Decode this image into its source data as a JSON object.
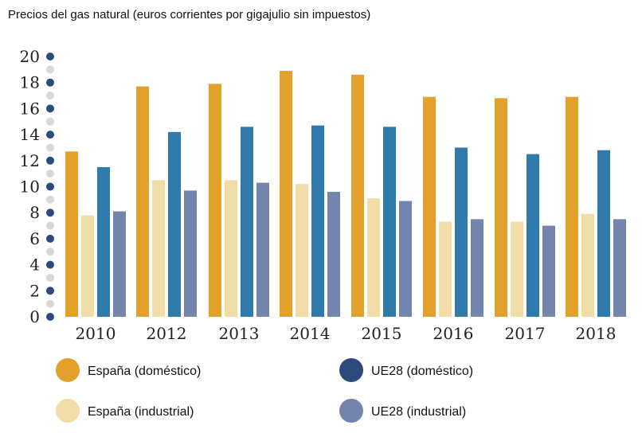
{
  "chart_data": {
    "type": "bar",
    "title": "Precios del gas natural (euros corrientes por gigajulio sin impuestos)",
    "xlabel": "",
    "ylabel": "",
    "ylim": [
      0,
      20
    ],
    "yticks": [
      0,
      2,
      4,
      6,
      8,
      10,
      12,
      14,
      16,
      18,
      20
    ],
    "categories": [
      "2010",
      "2012",
      "2013",
      "2014",
      "2015",
      "2016",
      "2017",
      "2018"
    ],
    "series": [
      {
        "name": "España (doméstico)",
        "color": "#e3a02a",
        "values": [
          12.7,
          17.7,
          17.9,
          18.9,
          18.6,
          16.9,
          16.8,
          16.9
        ]
      },
      {
        "name": "España (industrial)",
        "color": "#f2dca8",
        "values": [
          7.8,
          10.5,
          10.5,
          10.2,
          9.1,
          7.3,
          7.3,
          7.9
        ]
      },
      {
        "name": "UE28 (doméstico)",
        "color": "#2e7bab",
        "legend_color": "#2c4a7c",
        "values": [
          11.5,
          14.2,
          14.6,
          14.7,
          14.6,
          13.0,
          12.5,
          12.8
        ]
      },
      {
        "name": "UE28 (industrial)",
        "color": "#7384ad",
        "values": [
          8.1,
          9.7,
          10.3,
          9.6,
          8.9,
          7.5,
          7.0,
          7.5
        ]
      }
    ],
    "legend_placement": "bottom",
    "grid": false
  }
}
